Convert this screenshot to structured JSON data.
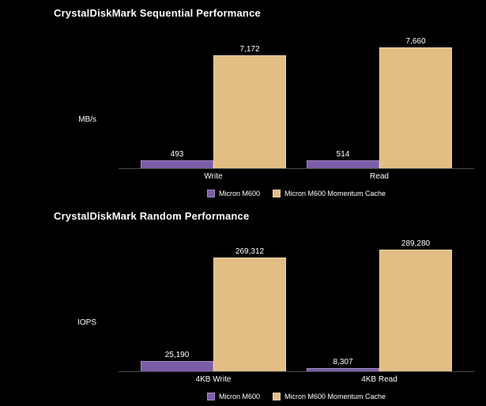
{
  "page": {
    "background": "#000000",
    "text_color": "#ffffff"
  },
  "chart_data": [
    {
      "type": "bar",
      "title": "CrystalDiskMark Sequential Performance",
      "ylabel": "MB/s",
      "xlabel": "",
      "categories": [
        "Write",
        "Read"
      ],
      "series": [
        {
          "name": "Micron M600",
          "color": "#7A5CA8",
          "values": [
            493,
            514
          ]
        },
        {
          "name": "Micron M600 Momentum Cache",
          "color": "#E2BD84",
          "values": [
            7172,
            7660
          ]
        }
      ],
      "ylim": [
        0,
        8000
      ],
      "grid": false,
      "legend_position": "bottom"
    },
    {
      "type": "bar",
      "title": "CrystalDiskMark Random Performance",
      "ylabel": "IOPS",
      "xlabel": "",
      "categories": [
        "4KB Write",
        "4KB Read"
      ],
      "series": [
        {
          "name": "Micron M600",
          "color": "#7A5CA8",
          "values": [
            25190,
            8307
          ]
        },
        {
          "name": "Micron M600 Momentum Cache",
          "color": "#E2BD84",
          "values": [
            269312,
            289280
          ]
        }
      ],
      "ylim": [
        0,
        300000
      ],
      "grid": false,
      "legend_position": "bottom"
    }
  ]
}
